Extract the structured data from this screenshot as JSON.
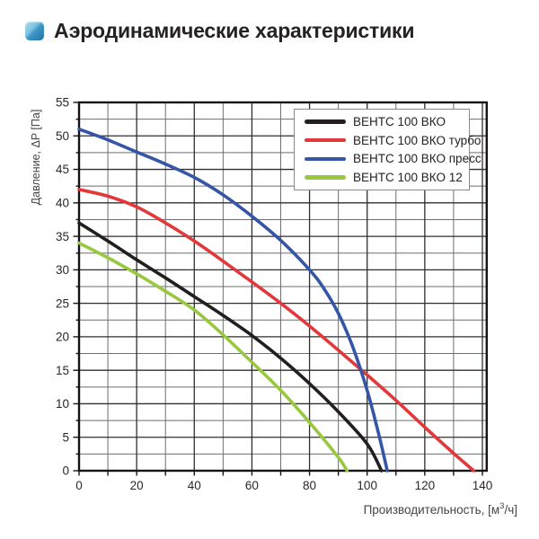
{
  "header": {
    "title": "Аэродинамические характеристики"
  },
  "chart_data": {
    "type": "line",
    "title": "Аэродинамические характеристики",
    "ylabel": "Давление, ΔP [Па]",
    "xlabel_pre": "Производительность, [м",
    "xlabel_sup": "3",
    "xlabel_post": "/ч]",
    "xlim": [
      0,
      141.5
    ],
    "ylim": [
      0,
      55
    ],
    "x_ticks": [
      0,
      20,
      40,
      60,
      80,
      100,
      120,
      140
    ],
    "y_ticks": [
      0,
      5,
      10,
      15,
      20,
      25,
      30,
      35,
      40,
      45,
      50,
      55
    ],
    "x_minor_step": 10,
    "y_minor_step": 2.5,
    "grid": true,
    "legend_position": "top-right",
    "colors": {
      "frame": "#161314",
      "grid_major": "#2f2f2f",
      "grid_minor": "#6e6e6e",
      "tick_label": "#2b2627",
      "axis_label": "#474445"
    },
    "series": [
      {
        "name": "ВЕНТС 100 ВКО",
        "color": "#231f20",
        "points": [
          [
            0,
            37
          ],
          [
            10,
            34.3
          ],
          [
            20,
            31.5
          ],
          [
            30,
            28.8
          ],
          [
            40,
            26
          ],
          [
            50,
            23.2
          ],
          [
            60,
            20.2
          ],
          [
            70,
            16.8
          ],
          [
            80,
            13
          ],
          [
            90,
            8.8
          ],
          [
            100,
            4
          ],
          [
            105,
            0
          ]
        ]
      },
      {
        "name": "ВЕНТС 100 ВКО турбо",
        "color": "#e2383b",
        "points": [
          [
            0,
            42
          ],
          [
            10,
            41
          ],
          [
            20,
            39.4
          ],
          [
            30,
            37
          ],
          [
            40,
            34.3
          ],
          [
            50,
            31.3
          ],
          [
            60,
            28.2
          ],
          [
            70,
            25
          ],
          [
            80,
            21.6
          ],
          [
            90,
            18
          ],
          [
            100,
            14.3
          ],
          [
            110,
            10.5
          ],
          [
            120,
            6.5
          ],
          [
            130,
            2.6
          ],
          [
            137,
            0
          ]
        ]
      },
      {
        "name": "ВЕНТС 100 ВКО пресс",
        "color": "#3556a7",
        "points": [
          [
            0,
            51
          ],
          [
            10,
            49.4
          ],
          [
            20,
            47.6
          ],
          [
            30,
            45.8
          ],
          [
            40,
            43.8
          ],
          [
            50,
            41.2
          ],
          [
            60,
            38
          ],
          [
            70,
            34.4
          ],
          [
            80,
            30
          ],
          [
            85,
            27.2
          ],
          [
            90,
            23.5
          ],
          [
            95,
            18.5
          ],
          [
            100,
            12
          ],
          [
            104,
            5.5
          ],
          [
            107,
            0
          ]
        ]
      },
      {
        "name": "ВЕНТС 100 ВКО 12",
        "color": "#97c83e",
        "points": [
          [
            0,
            34
          ],
          [
            10,
            31.8
          ],
          [
            20,
            29.4
          ],
          [
            30,
            26.8
          ],
          [
            40,
            24
          ],
          [
            50,
            20.3
          ],
          [
            60,
            16.2
          ],
          [
            70,
            12
          ],
          [
            80,
            7.2
          ],
          [
            90,
            2
          ],
          [
            93,
            0
          ]
        ]
      }
    ]
  }
}
